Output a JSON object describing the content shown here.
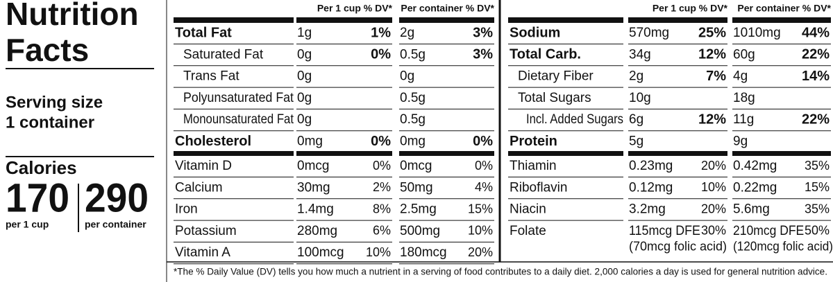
{
  "panel": {
    "title_lines": [
      "Nutrition",
      "Facts"
    ],
    "serving_lines": [
      "Serving size",
      "1 container"
    ],
    "calories_label": "Calories",
    "calories": [
      {
        "amount": "170",
        "unit": "per 1 cup"
      },
      {
        "amount": "290",
        "unit": "per container"
      }
    ]
  },
  "tables": [
    {
      "columns": [
        "Per 1 cup % DV*",
        "Per container % DV*"
      ],
      "nutrients": [
        {
          "name": "Total Fat",
          "level": 0,
          "cells": [
            {
              "amount": "1g",
              "dv": "1%"
            },
            {
              "amount": "2g",
              "dv": "3%"
            }
          ]
        },
        {
          "name": "Saturated Fat",
          "level": 1,
          "cells": [
            {
              "amount": "0g",
              "dv": "0%"
            },
            {
              "amount": "0.5g",
              "dv": "3%"
            }
          ]
        },
        {
          "name": "Trans Fat",
          "level": 1,
          "cells": [
            {
              "amount": "0g"
            },
            {
              "amount": "0g"
            }
          ]
        },
        {
          "name": "Polyunsaturated Fat",
          "level": 1,
          "cells": [
            {
              "amount": "0g"
            },
            {
              "amount": "0.5g"
            }
          ]
        },
        {
          "name": "Monounsaturated Fat",
          "level": 1,
          "cells": [
            {
              "amount": "0g"
            },
            {
              "amount": "0.5g"
            }
          ]
        },
        {
          "name": "Cholesterol",
          "level": 0,
          "cells": [
            {
              "amount": "0mg",
              "dv": "0%"
            },
            {
              "amount": "0mg",
              "dv": "0%"
            }
          ]
        }
      ],
      "vitamins": [
        {
          "name": "Vitamin D",
          "cells": [
            {
              "amount": "0mcg",
              "dv": "0%"
            },
            {
              "amount": "0mcg",
              "dv": "0%"
            }
          ]
        },
        {
          "name": "Calcium",
          "cells": [
            {
              "amount": "30mg",
              "dv": "2%"
            },
            {
              "amount": "50mg",
              "dv": "4%"
            }
          ]
        },
        {
          "name": "Iron",
          "cells": [
            {
              "amount": "1.4mg",
              "dv": "8%"
            },
            {
              "amount": "2.5mg",
              "dv": "15%"
            }
          ]
        },
        {
          "name": "Potassium",
          "cells": [
            {
              "amount": "280mg",
              "dv": "6%"
            },
            {
              "amount": "500mg",
              "dv": "10%"
            }
          ]
        },
        {
          "name": "Vitamin A",
          "cells": [
            {
              "amount": "100mcg",
              "dv": "10%"
            },
            {
              "amount": "180mcg",
              "dv": "20%"
            }
          ]
        }
      ]
    },
    {
      "columns": [
        "Per 1 cup % DV*",
        "Per container % DV*"
      ],
      "nutrients": [
        {
          "name": "Sodium",
          "level": 0,
          "cells": [
            {
              "amount": "570mg",
              "dv": "25%"
            },
            {
              "amount": "1010mg",
              "dv": "44%"
            }
          ]
        },
        {
          "name": "Total Carb.",
          "level": 0,
          "cells": [
            {
              "amount": "34g",
              "dv": "12%"
            },
            {
              "amount": "60g",
              "dv": "22%"
            }
          ]
        },
        {
          "name": "Dietary Fiber",
          "level": 1,
          "cells": [
            {
              "amount": "2g",
              "dv": "7%"
            },
            {
              "amount": "4g",
              "dv": "14%"
            }
          ]
        },
        {
          "name": "Total Sugars",
          "level": 1,
          "cells": [
            {
              "amount": "10g"
            },
            {
              "amount": "18g"
            }
          ]
        },
        {
          "name": "Incl. Added Sugars",
          "level": 2,
          "cells": [
            {
              "amount": "6g",
              "dv": "12%"
            },
            {
              "amount": "11g",
              "dv": "22%"
            }
          ]
        },
        {
          "name": "Protein",
          "level": 0,
          "cells": [
            {
              "amount": "5g"
            },
            {
              "amount": "9g"
            }
          ]
        }
      ],
      "vitamins": [
        {
          "name": "Thiamin",
          "cells": [
            {
              "amount": "0.23mg",
              "dv": "20%"
            },
            {
              "amount": "0.42mg",
              "dv": "35%"
            }
          ]
        },
        {
          "name": "Riboflavin",
          "cells": [
            {
              "amount": "0.12mg",
              "dv": "10%"
            },
            {
              "amount": "0.22mg",
              "dv": "15%"
            }
          ]
        },
        {
          "name": "Niacin",
          "cells": [
            {
              "amount": "3.2mg",
              "dv": "20%"
            },
            {
              "amount": "5.6mg",
              "dv": "35%"
            }
          ]
        },
        {
          "name": "Folate",
          "cells": [
            {
              "amount": "115mcg DFE",
              "dv": "30%",
              "note": "(70mcg folic acid)"
            },
            {
              "amount": "210mcg DFE",
              "dv": "50%",
              "note": "(120mcg folic acid)"
            }
          ]
        }
      ]
    }
  ],
  "footnote": "*The % Daily Value (DV) tells you how much a nutrient in a serving of food contributes to a daily diet. 2,000 calories a day is used for general nutrition advice."
}
